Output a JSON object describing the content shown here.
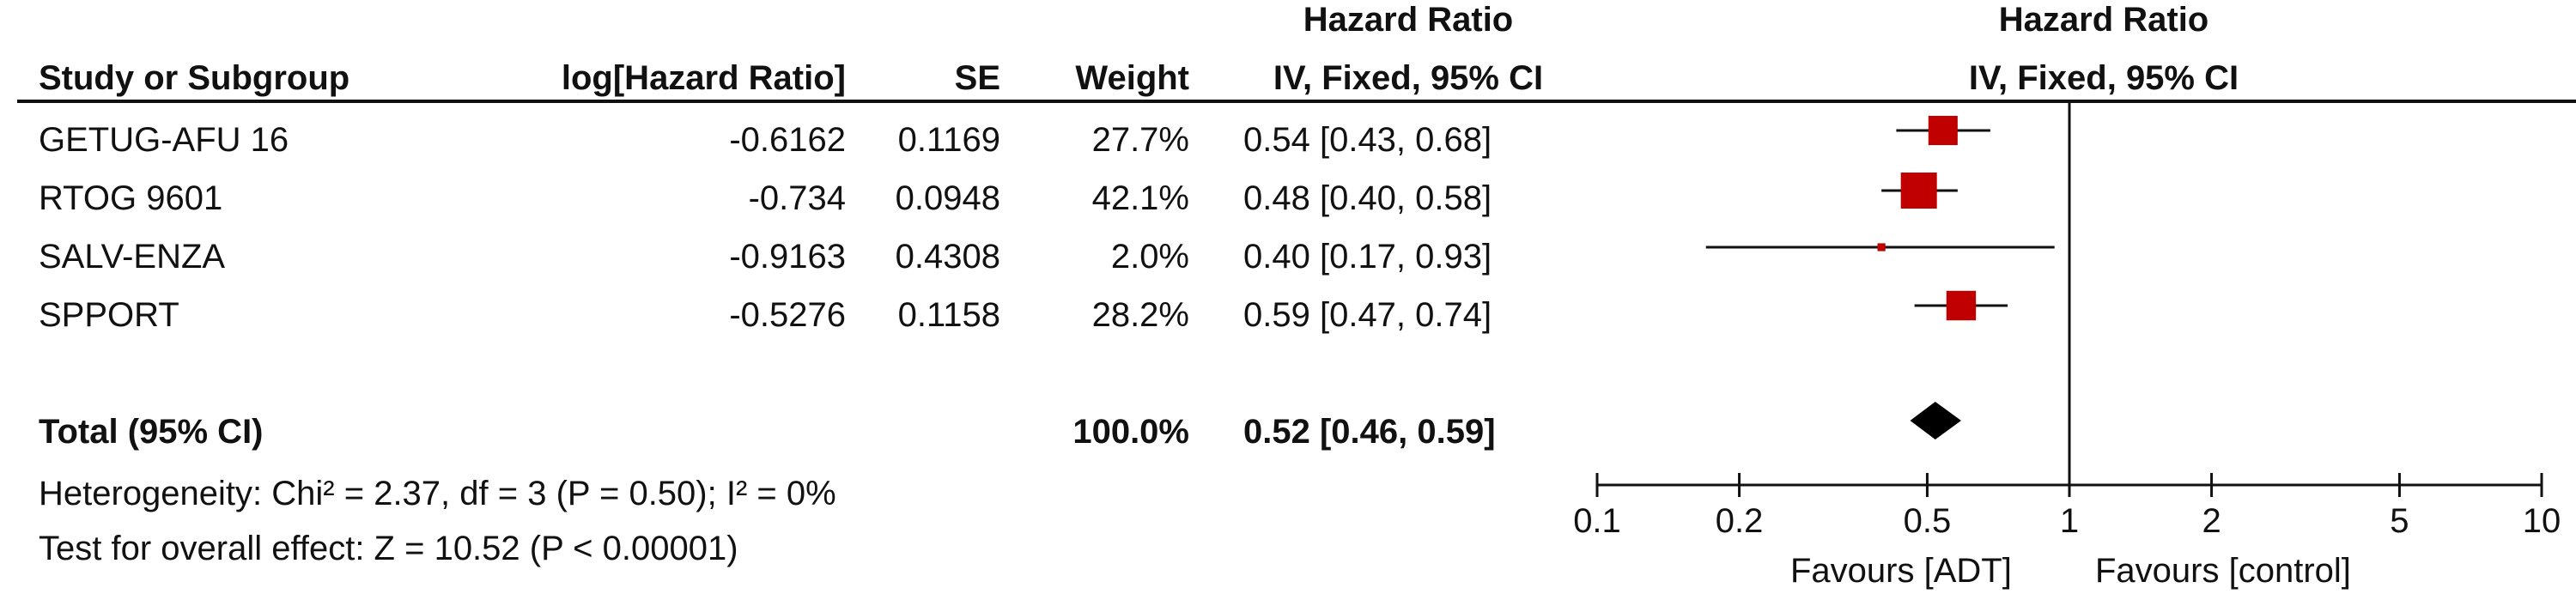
{
  "table": {
    "group_header": "Hazard Ratio",
    "columns": [
      "Study or Subgroup",
      "log[Hazard Ratio]",
      "SE",
      "Weight",
      "IV, Fixed, 95% CI"
    ],
    "rows": [
      {
        "study": "GETUG-AFU 16",
        "loghr": "-0.6162",
        "se": "0.1169",
        "weight": "27.7%",
        "ci": "0.54 [0.43, 0.68]"
      },
      {
        "study": "RTOG 9601",
        "loghr": "-0.734",
        "se": "0.0948",
        "weight": "42.1%",
        "ci": "0.48 [0.40, 0.58]"
      },
      {
        "study": "SALV-ENZA",
        "loghr": "-0.9163",
        "se": "0.4308",
        "weight": "2.0%",
        "ci": "0.40 [0.17, 0.93]"
      },
      {
        "study": "SPPORT",
        "loghr": "-0.5276",
        "se": "0.1158",
        "weight": "28.2%",
        "ci": "0.59 [0.47, 0.74]"
      }
    ],
    "total": {
      "label": "Total (95% CI)",
      "weight": "100.0%",
      "ci": "0.52 [0.46, 0.59]"
    },
    "heterogeneity": "Heterogeneity: Chi² = 2.37, df = 3 (P = 0.50); I² = 0%",
    "overall_effect": "Test for overall effect: Z = 10.52 (P < 0.00001)"
  },
  "plot": {
    "header_title": "Hazard Ratio",
    "header_sub": "IV, Fixed, 95% CI",
    "favours_left": "Favours [ADT]",
    "favours_right": "Favours [control]",
    "marker_color": "#c00000"
  },
  "chart_data": {
    "type": "forest",
    "scale": "log",
    "xlim": [
      0.1,
      10
    ],
    "ticks": [
      0.1,
      0.2,
      0.5,
      1,
      2,
      5,
      10
    ],
    "tick_labels": [
      "0.1",
      "0.2",
      "0.5",
      "1",
      "2",
      "5",
      "10"
    ],
    "reference_line": 1,
    "studies": [
      {
        "name": "GETUG-AFU 16",
        "hr": 0.54,
        "lo": 0.43,
        "hi": 0.68,
        "weight": 27.7
      },
      {
        "name": "RTOG 9601",
        "hr": 0.48,
        "lo": 0.4,
        "hi": 0.58,
        "weight": 42.1
      },
      {
        "name": "SALV-ENZA",
        "hr": 0.4,
        "lo": 0.17,
        "hi": 0.93,
        "weight": 2.0
      },
      {
        "name": "SPPORT",
        "hr": 0.59,
        "lo": 0.47,
        "hi": 0.74,
        "weight": 28.2
      }
    ],
    "pooled": {
      "hr": 0.52,
      "lo": 0.46,
      "hi": 0.59
    }
  }
}
